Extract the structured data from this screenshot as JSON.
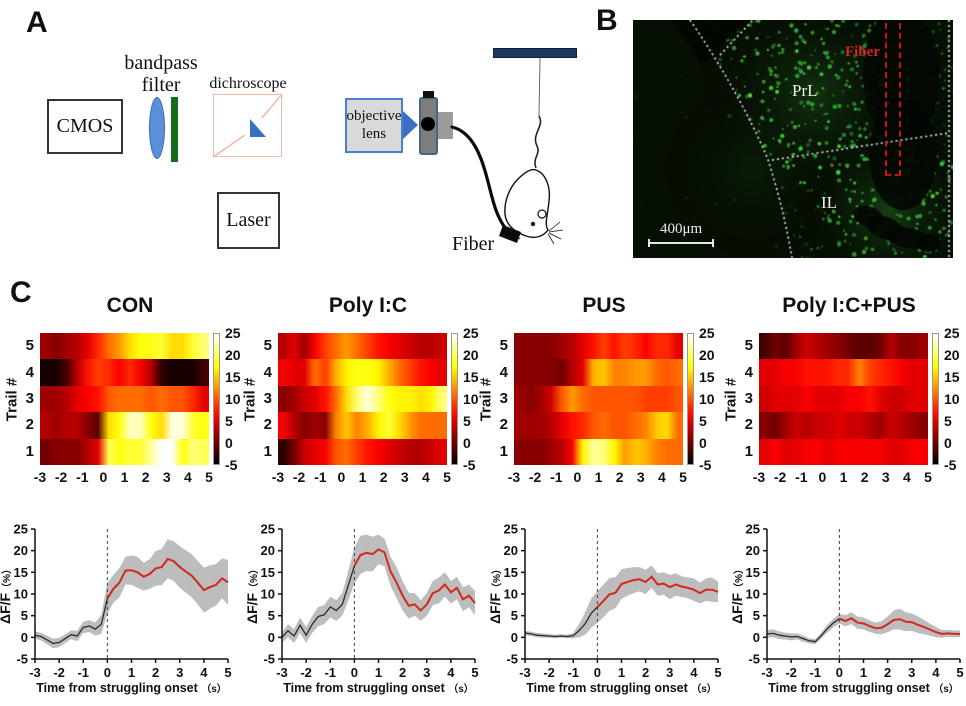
{
  "panel_a": {
    "label": "A",
    "cmos": "CMOS",
    "bandpass_line1": "bandpass",
    "bandpass_line2": "filter",
    "dichroscope": "dichroscope",
    "laser": "Laser",
    "objective_line1": "objective",
    "objective_line2": "lens",
    "fiber_label": "Fiber"
  },
  "panel_b": {
    "label": "B",
    "fiber_label": "Fiber",
    "region_top": "PrL",
    "region_bottom": "IL",
    "scale_label": "400μm"
  },
  "panel_c": {
    "label": "C"
  },
  "colors": {
    "trace_pre": "#2b2b2b",
    "trace_post": "#d3281e",
    "band": "#bdbdbd",
    "onset_line": "#444444",
    "beam_green": "#1f7d22",
    "beam_blue": "#5b8fd9",
    "fiber_box_red": "#cc1111"
  },
  "chart_data": {
    "heat_axes": {
      "type": "heatmap",
      "x_ticks": [
        -3,
        -2,
        -1,
        0,
        1,
        2,
        3,
        4,
        5
      ],
      "x_range": [
        -3,
        5
      ],
      "ylabel": "Trail #",
      "row_labels": [
        "5",
        "4",
        "3",
        "2",
        "1"
      ],
      "colorbar_ticks": [
        25,
        20,
        15,
        10,
        5,
        0,
        -5
      ],
      "clim": [
        -5,
        25
      ],
      "colormap": "hot"
    },
    "heatmaps": [
      {
        "title": "CON",
        "rows": [
          [
            2,
            1,
            2,
            3,
            5,
            8,
            11,
            13,
            16,
            18,
            18,
            19,
            16,
            16,
            19,
            21
          ],
          [
            -4,
            -4,
            -2,
            3,
            7,
            9,
            8,
            6,
            8,
            6,
            3,
            -3,
            -4,
            -4,
            -4,
            -2
          ],
          [
            2,
            2,
            3,
            5,
            6,
            7,
            10,
            11,
            11,
            11,
            10,
            11,
            10,
            10,
            8,
            5
          ],
          [
            3,
            2,
            3,
            3,
            1,
            -1,
            16,
            18,
            23,
            23,
            18,
            16,
            24,
            24,
            19,
            18
          ],
          [
            0,
            1,
            1,
            1,
            3,
            5,
            20,
            18,
            19,
            19,
            22,
            25,
            25,
            18,
            21,
            20
          ]
        ]
      },
      {
        "title": "Poly I:C",
        "rows": [
          [
            3,
            5,
            2,
            6,
            9,
            11,
            13,
            11,
            9,
            7,
            6,
            5,
            4,
            3,
            3,
            4
          ],
          [
            6,
            5,
            5,
            11,
            9,
            14,
            17,
            18,
            18,
            17,
            14,
            11,
            9,
            7,
            6,
            5
          ],
          [
            1,
            2,
            4,
            5,
            7,
            11,
            16,
            21,
            24,
            21,
            18,
            17,
            17,
            16,
            17,
            21
          ],
          [
            6,
            3,
            1,
            2,
            1,
            12,
            15,
            12,
            14,
            17,
            19,
            16,
            13,
            11,
            11,
            11
          ],
          [
            -3,
            0,
            4,
            5,
            6,
            10,
            11,
            9,
            7,
            6,
            5,
            4,
            3,
            3,
            4,
            5
          ]
        ]
      },
      {
        "title": "PUS",
        "rows": [
          [
            1,
            1,
            1,
            1,
            2,
            3,
            5,
            7,
            9,
            7,
            9,
            8,
            6,
            8,
            8,
            5
          ],
          [
            1,
            1,
            1,
            1,
            0,
            3,
            5,
            14,
            15,
            12,
            12,
            13,
            13,
            11,
            10,
            11
          ],
          [
            2,
            1,
            2,
            4,
            10,
            13,
            11,
            10,
            10,
            10,
            10,
            10,
            9,
            9,
            9,
            10
          ],
          [
            2,
            2,
            2,
            3,
            5,
            7,
            8,
            10,
            11,
            10,
            10,
            11,
            12,
            15,
            16,
            11
          ],
          [
            1,
            1,
            1,
            2,
            3,
            6,
            17,
            22,
            21,
            17,
            13,
            15,
            14,
            12,
            11,
            11
          ]
        ]
      },
      {
        "title": "Poly I:C+PUS",
        "rows": [
          [
            -2,
            0,
            -1,
            2,
            4,
            3,
            2,
            1,
            0,
            -1,
            -1,
            0,
            3,
            1,
            1,
            2
          ],
          [
            5,
            5,
            6,
            6,
            7,
            7,
            7,
            8,
            8,
            12,
            9,
            8,
            7,
            6,
            5,
            5
          ],
          [
            4,
            5,
            5,
            5,
            6,
            5,
            5,
            5,
            6,
            6,
            7,
            5,
            4,
            4,
            5,
            5
          ],
          [
            1,
            0,
            2,
            4,
            3,
            4,
            4,
            5,
            4,
            4,
            3,
            2,
            4,
            3,
            2,
            1
          ],
          [
            5,
            6,
            5,
            5,
            6,
            6,
            5,
            6,
            6,
            6,
            6,
            6,
            5,
            5,
            6,
            6
          ]
        ]
      }
    ],
    "line_axes": {
      "type": "line",
      "x_start": -3,
      "x_step": 0.25,
      "xlim": [
        -3,
        5
      ],
      "ylim": [
        -5,
        25
      ],
      "x_ticks": [
        -3,
        -2,
        -1,
        0,
        1,
        2,
        3,
        4,
        5
      ],
      "y_ticks": [
        -5,
        0,
        5,
        10,
        15,
        20,
        25
      ],
      "xlabel": "Time from struggling onset",
      "xlabel_suffix": "（s）",
      "ylabel": "ΔF/F",
      "ylabel_suffix": "（%）",
      "onset_x": 0
    },
    "lineplots": [
      {
        "group": "CON",
        "mean": [
          0.5,
          0.2,
          -0.6,
          -1.4,
          -1.2,
          -0.3,
          0.6,
          0.3,
          2.3,
          2.6,
          1.9,
          3.0,
          9.0,
          11.2,
          12.6,
          15.4,
          15.5,
          15.0,
          14.0,
          14.6,
          15.9,
          16.2,
          18.1,
          17.6,
          16.2,
          15.2,
          14.2,
          12.6,
          10.9,
          11.6,
          12.1,
          13.6,
          12.7
        ],
        "band": [
          0.8,
          0.9,
          1.0,
          1.1,
          1.1,
          1.0,
          1.0,
          1.2,
          1.3,
          1.4,
          1.5,
          2.2,
          3.6,
          3.2,
          3.4,
          3.2,
          3.4,
          3.6,
          3.2,
          3.4,
          4.0,
          4.2,
          4.5,
          4.6,
          4.8,
          4.9,
          5.0,
          5.0,
          5.2,
          5.0,
          4.8,
          4.6,
          5.2
        ]
      },
      {
        "group": "Poly I:C",
        "mean": [
          0.0,
          1.5,
          0.3,
          2.8,
          0.5,
          3.0,
          4.8,
          5.2,
          7.0,
          6.2,
          7.6,
          12.0,
          16.5,
          19.0,
          19.5,
          19.2,
          20.3,
          19.6,
          15.2,
          12.6,
          9.6,
          7.3,
          7.6,
          6.2,
          7.6,
          10.2,
          10.8,
          12.2,
          10.4,
          11.4,
          8.8,
          9.6,
          7.9
        ],
        "band": [
          1.2,
          1.5,
          1.6,
          1.8,
          1.8,
          2.0,
          2.2,
          2.2,
          2.4,
          2.4,
          2.6,
          3.4,
          4.2,
          4.4,
          4.2,
          4.0,
          3.4,
          3.2,
          3.4,
          3.6,
          3.4,
          3.0,
          2.6,
          2.4,
          2.6,
          2.8,
          3.0,
          2.8,
          2.6,
          2.6,
          2.8,
          2.6,
          2.8
        ]
      },
      {
        "group": "PUS",
        "mean": [
          1.0,
          0.8,
          0.5,
          0.4,
          0.3,
          0.2,
          0.3,
          0.2,
          0.4,
          1.6,
          3.2,
          5.6,
          7.0,
          8.4,
          9.9,
          10.3,
          12.3,
          12.8,
          13.2,
          13.4,
          12.8,
          14.0,
          12.2,
          12.4,
          11.6,
          12.2,
          11.7,
          11.4,
          11.0,
          10.2,
          11.0,
          11.0,
          10.5
        ],
        "band": [
          0.5,
          0.5,
          0.5,
          0.5,
          0.4,
          0.4,
          0.4,
          0.4,
          0.6,
          1.6,
          2.6,
          3.4,
          3.6,
          3.8,
          3.8,
          3.6,
          3.4,
          3.2,
          3.0,
          2.8,
          2.8,
          2.6,
          2.6,
          2.6,
          2.8,
          2.6,
          2.4,
          2.4,
          2.6,
          2.4,
          2.6,
          2.8,
          2.4
        ]
      },
      {
        "group": "Poly I:C+PUS",
        "mean": [
          0.8,
          0.9,
          0.5,
          0.3,
          0.1,
          0.2,
          -0.3,
          -0.8,
          -1.0,
          0.4,
          2.0,
          3.3,
          4.3,
          3.8,
          4.4,
          3.4,
          3.2,
          2.6,
          2.1,
          2.2,
          3.0,
          4.0,
          4.2,
          3.6,
          3.5,
          2.9,
          2.4,
          1.8,
          1.2,
          0.8,
          0.9,
          0.8,
          0.8
        ],
        "band": [
          0.9,
          0.9,
          0.9,
          0.8,
          0.8,
          0.7,
          0.7,
          0.6,
          0.6,
          0.7,
          0.9,
          1.0,
          1.1,
          1.3,
          1.4,
          1.4,
          1.4,
          1.3,
          1.3,
          1.5,
          1.8,
          2.2,
          2.4,
          2.2,
          2.0,
          1.9,
          1.7,
          1.4,
          1.2,
          0.9,
          0.8,
          0.8,
          0.8
        ]
      }
    ]
  }
}
